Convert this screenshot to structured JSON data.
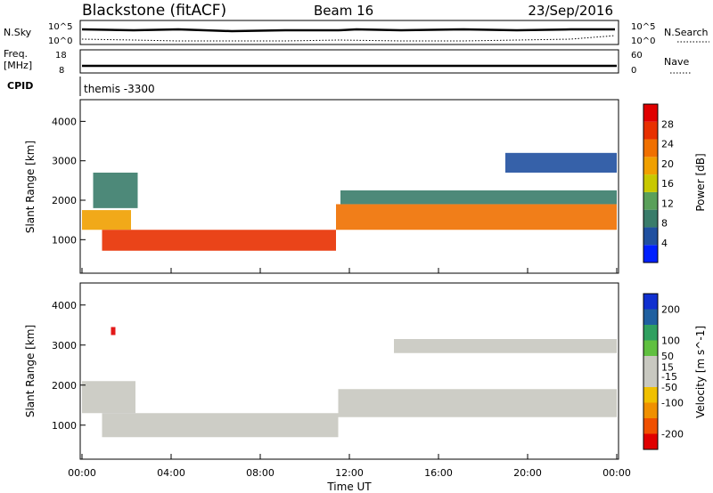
{
  "header": {
    "station": "Blackstone (fitACF)",
    "beam": "Beam 16",
    "date": "23/Sep/2016"
  },
  "top_panels": {
    "nsky_label": "N.Sky",
    "nsearch_label": "N.Search",
    "nsky_ticks": [
      "10^5",
      "10^0"
    ],
    "nsearch_ticks": [
      "10^5",
      "10^0"
    ],
    "freq_label": "Freq.",
    "freq_unit": "[MHz]",
    "freq_ticks": [
      "18",
      "8"
    ],
    "nave_label": "Nave",
    "nave_ticks": [
      "60",
      "0"
    ],
    "cpid_label": "CPID",
    "cpid_text": "themis -3300"
  },
  "x_axis": {
    "label": "Time UT",
    "ticks": [
      "00:00",
      "04:00",
      "08:00",
      "12:00",
      "16:00",
      "20:00",
      "00:00"
    ]
  },
  "colors": {
    "power": [
      "#0020ff",
      "#2050a0",
      "#3a7c6a",
      "#5aa05a",
      "#c8c800",
      "#f0a000",
      "#f07000",
      "#e83000",
      "#e00000"
    ],
    "velocity": [
      "#e00000",
      "#f05000",
      "#f09000",
      "#f0c000",
      "#c8c8c0",
      "#c8c8c0",
      "#60c040",
      "#30a060",
      "#2060a0",
      "#1030d0"
    ]
  },
  "chart_data": [
    {
      "type": "heatmap",
      "name": "power",
      "ylabel": "Slant Range [km]",
      "y_ticks": [
        1000,
        2000,
        3000,
        4000
      ],
      "ylim": [
        150,
        4550
      ],
      "xlim_hours": [
        0,
        24
      ],
      "colorbar": {
        "label": "Power [dB]",
        "ticks": [
          4,
          8,
          12,
          16,
          20,
          24,
          28
        ],
        "range": [
          0,
          32
        ]
      },
      "bands": [
        {
          "t0": 0.0,
          "t1": 2.2,
          "r0": 1250,
          "r1": 1750,
          "level": 18
        },
        {
          "t0": 0.5,
          "t1": 2.5,
          "r0": 1800,
          "r1": 2700,
          "level": 10
        },
        {
          "t0": 0.9,
          "t1": 11.4,
          "r0": 720,
          "r1": 1250,
          "level": 28
        },
        {
          "t0": 11.4,
          "t1": 24.0,
          "r0": 1250,
          "r1": 1900,
          "level": 22
        },
        {
          "t0": 11.6,
          "t1": 24.0,
          "r0": 1900,
          "r1": 2250,
          "level": 8
        },
        {
          "t0": 19.0,
          "t1": 24.0,
          "r0": 2700,
          "r1": 3200,
          "level": 6
        }
      ]
    },
    {
      "type": "heatmap",
      "name": "velocity",
      "ylabel": "Slant Range [km]",
      "y_ticks": [
        1000,
        2000,
        3000,
        4000
      ],
      "ylim": [
        150,
        4550
      ],
      "xlim_hours": [
        0,
        24
      ],
      "colorbar": {
        "label": "Velocity [m s^-1]",
        "ticks": [
          -200,
          -100,
          -50,
          -15,
          15,
          50,
          100,
          200
        ],
        "range": [
          -250,
          250
        ]
      },
      "bands": [
        {
          "t0": 0.0,
          "t1": 2.4,
          "r0": 1300,
          "r1": 2100,
          "level": 0
        },
        {
          "t0": 0.9,
          "t1": 11.5,
          "r0": 700,
          "r1": 1300,
          "level": -40
        },
        {
          "t0": 11.5,
          "t1": 24.0,
          "r0": 1200,
          "r1": 1900,
          "level": 0
        },
        {
          "t0": 14.0,
          "t1": 24.0,
          "r0": 2800,
          "r1": 3150,
          "level": -40
        },
        {
          "t0": 1.3,
          "t1": 1.5,
          "r0": 3250,
          "r1": 3450,
          "level": -220
        }
      ]
    }
  ]
}
